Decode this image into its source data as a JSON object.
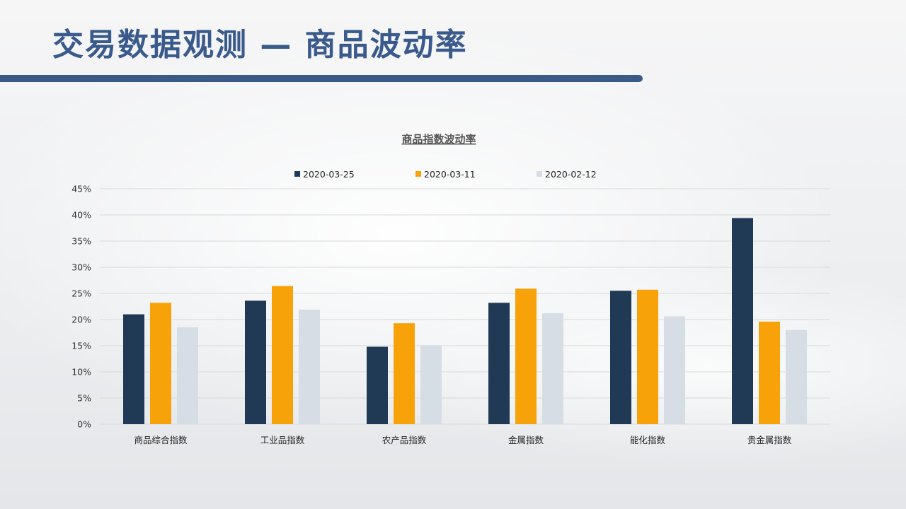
{
  "page": {
    "title": "交易数据观测 — 商品波动率"
  },
  "colors": {
    "title": "#3a5a8c",
    "accent_bar": "#3b5a86"
  },
  "chart_data": {
    "type": "bar",
    "title": "商品指数波动率",
    "categories": [
      "商品综合指数",
      "工业品指数",
      "农产品指数",
      "金属指数",
      "能化指数",
      "贵金属指数"
    ],
    "series": [
      {
        "name": "2020-03-25",
        "color": "#203a56",
        "values": [
          21.0,
          23.6,
          14.8,
          23.2,
          25.5,
          39.4
        ]
      },
      {
        "name": "2020-03-11",
        "color": "#f8a20a",
        "values": [
          23.2,
          26.4,
          19.3,
          25.9,
          25.7,
          19.6
        ]
      },
      {
        "name": "2020-02-12",
        "color": "#d6dde5",
        "values": [
          18.5,
          21.9,
          15.1,
          21.2,
          20.6,
          18.0
        ]
      }
    ],
    "ylim": [
      0,
      45
    ],
    "yticks": [
      "0%",
      "5%",
      "10%",
      "15%",
      "20%",
      "25%",
      "30%",
      "35%",
      "40%",
      "45%"
    ],
    "legend_position": "top",
    "grid": true
  }
}
